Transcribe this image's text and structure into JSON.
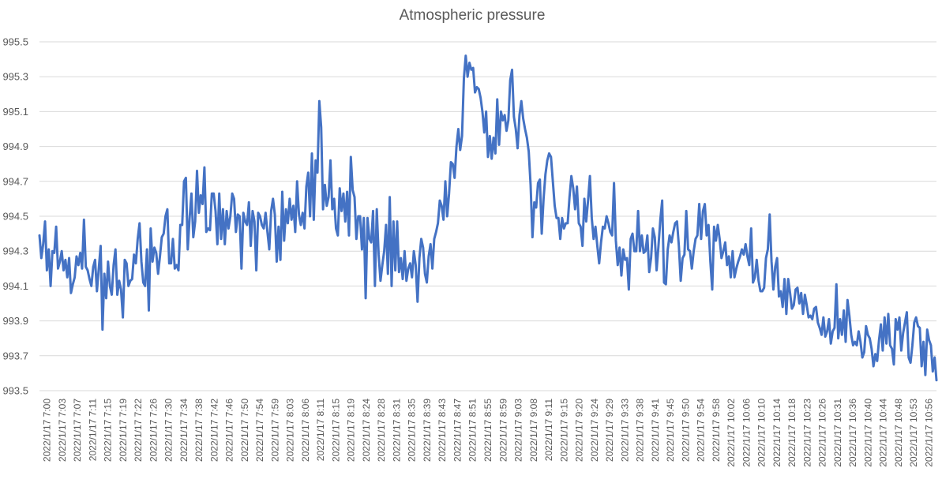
{
  "chart_data": {
    "type": "line",
    "title": "Atmospheric pressure",
    "xlabel": "",
    "ylabel": "",
    "ylim": [
      993.5,
      995.5
    ],
    "y_ticks": [
      "993.5",
      "993.7",
      "993.9",
      "994.1",
      "994.3",
      "994.5",
      "994.7",
      "994.9",
      "995.1",
      "995.3",
      "995.5"
    ],
    "gridlines": true,
    "legend": "none",
    "colors": {
      "series": "#4472c4",
      "grid": "#d9d9d9",
      "text": "#595959"
    },
    "x_tick_labels": [
      "2022/1/17 7:00",
      "2022/1/17 7:03",
      "2022/1/17 7:07",
      "2022/1/17 7:11",
      "2022/1/17 7:15",
      "2022/1/17 7:19",
      "2022/1/17 7:22",
      "2022/1/17 7:26",
      "2022/1/17 7:30",
      "2022/1/17 7:34",
      "2022/1/17 7:38",
      "2022/1/17 7:42",
      "2022/1/17 7:46",
      "2022/1/17 7:50",
      "2022/1/17 7:54",
      "2022/1/17 7:59",
      "2022/1/17 8:03",
      "2022/1/17 8:06",
      "2022/1/17 8:11",
      "2022/1/17 8:15",
      "2022/1/17 8:19",
      "2022/1/17 8:24",
      "2022/1/17 8:28",
      "2022/1/17 8:31",
      "2022/1/17 8:35",
      "2022/1/17 8:39",
      "2022/1/17 8:43",
      "2022/1/17 8:47",
      "2022/1/17 8:51",
      "2022/1/17 8:55",
      "2022/1/17 8:59",
      "2022/1/17 9:03",
      "2022/1/17 9:08",
      "2022/1/17 9:11",
      "2022/1/17 9:15",
      "2022/1/17 9:20",
      "2022/1/17 9:24",
      "2022/1/17 9:29",
      "2022/1/17 9:33",
      "2022/1/17 9:38",
      "2022/1/17 9:41",
      "2022/1/17 9:45",
      "2022/1/17 9:50",
      "2022/1/17 9:54",
      "2022/1/17 9:58",
      "2022/1/17 10:02",
      "2022/1/17 10:06",
      "2022/1/17 10:10",
      "2022/1/17 10:14",
      "2022/1/17 10:18",
      "2022/1/17 10:23",
      "2022/1/17 10:26",
      "2022/1/17 10:31",
      "2022/1/17 10:36",
      "2022/1/17 10:40",
      "2022/1/17 10:44",
      "2022/1/17 10:48",
      "2022/1/17 10:53",
      "2022/1/17 10:56"
    ],
    "series": [
      {
        "name": "",
        "values": [
          994.39,
          994.26,
          994.34,
          994.47,
          994.19,
          994.31,
          994.1,
          994.3,
          994.29,
          994.44,
          994.2,
          994.24,
          994.3,
          994.19,
          994.25,
          994.15,
          994.26,
          994.06,
          994.11,
          994.15,
          994.27,
          994.22,
          994.29,
          994.2,
          994.48,
          994.21,
          994.19,
          994.14,
          994.1,
          994.21,
          994.25,
          994.07,
          994.2,
          994.33,
          993.85,
          994.17,
          994.03,
          994.24,
          994.1,
          994.05,
          994.22,
          994.31,
          994.05,
          994.13,
          994.08,
          993.92,
          994.25,
          994.23,
          994.1,
          994.13,
          994.14,
          994.28,
          994.23,
          994.37,
          994.46,
          994.24,
          994.12,
          994.1,
          994.31,
          993.96,
          994.43,
          994.24,
          994.32,
          994.29,
          994.17,
          994.27,
          994.38,
          994.4,
          994.5,
          994.54,
          994.23,
          994.23,
          994.37,
          994.2,
          994.22,
          994.19,
          994.45,
          994.45,
          994.7,
          994.72,
          994.31,
          994.49,
          994.63,
          994.38,
          994.47,
          994.76,
          994.52,
          994.62,
          994.57,
          994.78,
          994.41,
          994.43,
          994.42,
          994.63,
          994.63,
          994.53,
          994.34,
          994.63,
          994.37,
          994.54,
          994.34,
          994.53,
          994.43,
          994.5,
          994.63,
          994.6,
          994.41,
          994.51,
          994.5,
          994.2,
          994.52,
          994.47,
          994.45,
          994.58,
          994.33,
          994.53,
          994.47,
          994.19,
          994.52,
          994.5,
          994.45,
          994.43,
          994.52,
          994.41,
          994.31,
          994.53,
          994.6,
          994.51,
          994.24,
          994.44,
          994.25,
          994.64,
          994.36,
          994.54,
          994.46,
          994.6,
          994.48,
          994.56,
          994.41,
          994.7,
          994.51,
          994.45,
          994.52,
          994.43,
          994.67,
          994.75,
          994.5,
          994.86,
          994.48,
          994.82,
          994.75,
          995.16,
          995.01,
          994.54,
          994.68,
          994.56,
          994.61,
          994.82,
          994.54,
          994.6,
          994.43,
          994.39,
          994.66,
          994.53,
          994.63,
          994.47,
          994.64,
          994.39,
          994.84,
          994.65,
          994.61,
          994.37,
          994.5,
          994.5,
          994.31,
          994.49,
          994.03,
          994.49,
          994.37,
          994.35,
          994.53,
          994.1,
          994.54,
          994.28,
          994.13,
          994.22,
          994.3,
          994.45,
          994.17,
          994.61,
          994.1,
          994.47,
          994.19,
          994.47,
          994.18,
          994.26,
          994.14,
          994.3,
          994.13,
          994.2,
          994.23,
          994.15,
          994.3,
          994.22,
          994.01,
          994.26,
          994.37,
          994.32,
          994.17,
          994.12,
          994.27,
          994.34,
          994.2,
          994.37,
          994.41,
          994.46,
          994.59,
          994.56,
          994.48,
          994.7,
          994.5,
          994.63,
          994.81,
          994.8,
          994.72,
          994.9,
          995.0,
          994.88,
          994.96,
          995.29,
          995.42,
          995.3,
          995.38,
          995.34,
          995.35,
          995.21,
          995.24,
          995.23,
          995.18,
          995.1,
          994.98,
          995.1,
          994.84,
          994.96,
          994.83,
          994.95,
          994.86,
          995.17,
          994.91,
          995.1,
          995.05,
          995.08,
          994.99,
          995.05,
          995.28,
          995.34,
          995.07,
          995.0,
          994.89,
          995.08,
          995.16,
          995.06,
          995.0,
          994.95,
          994.87,
          994.68,
          994.38,
          994.58,
          994.55,
          994.69,
          994.71,
          994.4,
          994.6,
          994.74,
          994.82,
          994.86,
          994.84,
          994.7,
          994.56,
          994.49,
          994.49,
          994.37,
          994.49,
          994.43,
          994.46,
          994.46,
          994.61,
          994.73,
          994.66,
          994.54,
          994.67,
          994.46,
          994.44,
          994.33,
          994.6,
          994.47,
          994.59,
          994.73,
          994.49,
          994.37,
          994.44,
          994.33,
          994.23,
          994.35,
          994.44,
          994.43,
          994.5,
          994.46,
          994.41,
          994.39,
          994.69,
          994.36,
          994.22,
          994.32,
          994.16,
          994.31,
          994.25,
          994.26,
          994.08,
          994.37,
          994.4,
          994.3,
          994.3,
          994.53,
          994.3,
          994.39,
          994.29,
          994.3,
          994.39,
          994.18,
          994.26,
          994.43,
          994.38,
          994.19,
          994.33,
          994.48,
          994.59,
          994.12,
          994.11,
          994.31,
          994.39,
          994.35,
          994.41,
          994.46,
          994.47,
          994.33,
          994.13,
          994.26,
          994.28,
          994.53,
          994.31,
          994.3,
          994.2,
          994.3,
          994.37,
          994.39,
          994.57,
          994.37,
          994.53,
          994.57,
          994.39,
          994.45,
          994.24,
          994.08,
          994.44,
          994.36,
          994.45,
          994.37,
          994.26,
          994.3,
          994.35,
          994.22,
          994.27,
          994.15,
          994.3,
          994.15,
          994.2,
          994.24,
          994.27,
          994.31,
          994.28,
          994.34,
          994.27,
          994.22,
          994.43,
          994.12,
          994.15,
          994.25,
          994.13,
          994.07,
          994.07,
          994.09,
          994.26,
          994.31,
          994.51,
          994.24,
          994.08,
          994.21,
          994.26,
          994.04,
          994.07,
          993.98,
          994.14,
          993.94,
          994.14,
          994.06,
          993.97,
          993.99,
          994.08,
          994.09,
          994.0,
          994.06,
          993.94,
          994.05,
          993.99,
          993.92,
          993.93,
          993.91,
          993.97,
          993.98,
          993.89,
          993.86,
          993.82,
          993.92,
          993.81,
          993.84,
          993.91,
          993.77,
          993.84,
          993.86,
          994.11,
          993.8,
          993.91,
          993.82,
          993.96,
          993.78,
          994.02,
          993.93,
          993.82,
          993.76,
          993.78,
          993.76,
          993.84,
          993.78,
          993.69,
          993.72,
          993.87,
          993.82,
          993.8,
          993.74,
          993.64,
          993.71,
          993.67,
          993.79,
          993.88,
          993.73,
          993.92,
          993.77,
          993.94,
          993.76,
          993.74,
          993.65,
          993.91,
          993.85,
          993.92,
          993.73,
          993.83,
          993.89,
          993.95,
          993.69,
          993.66,
          993.76,
          993.89,
          993.92,
          993.87,
          993.86,
          993.64,
          993.78,
          993.59,
          993.85,
          993.79,
          993.76,
          993.61,
          993.69,
          993.56
        ]
      }
    ]
  }
}
